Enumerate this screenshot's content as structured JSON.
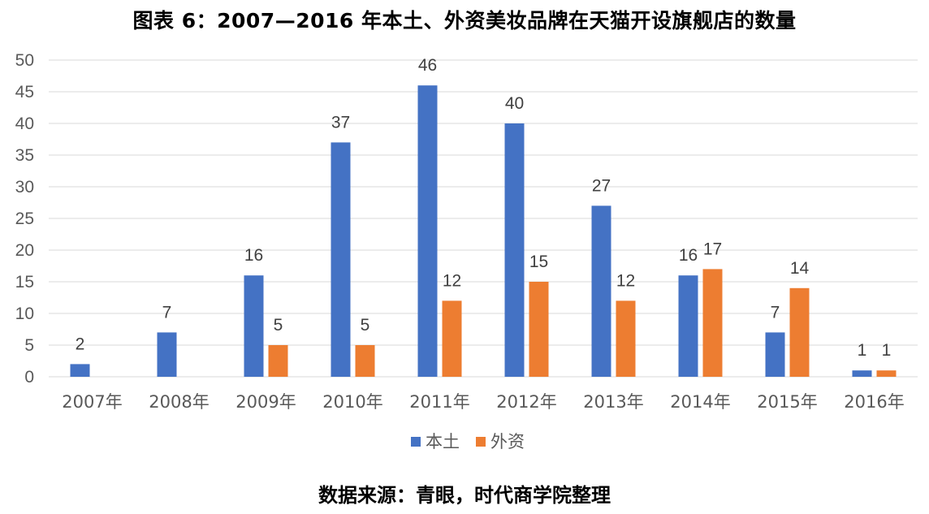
{
  "title": "图表 6：2007—2016 年本土、外资美妆品牌在天猫开设旗舰店的数量",
  "source": "数据来源：青眼，时代商学院整理",
  "chart_data": {
    "type": "bar",
    "categories": [
      "2007年",
      "2008年",
      "2009年",
      "2010年",
      "2011年",
      "2012年",
      "2013年",
      "2014年",
      "2015年",
      "2016年"
    ],
    "series": [
      {
        "name": "本土",
        "color": "#4472C4",
        "values": [
          2,
          7,
          16,
          37,
          46,
          40,
          27,
          16,
          7,
          1
        ],
        "labels": [
          "2",
          "7",
          "16",
          "37",
          "46",
          "40",
          "27",
          "16",
          "7",
          "1"
        ]
      },
      {
        "name": "外资",
        "color": "#ED7D31",
        "values": [
          0,
          0,
          5,
          5,
          12,
          15,
          12,
          17,
          14,
          1
        ],
        "labels": [
          "",
          "",
          "5",
          "5",
          "12",
          "15",
          "12",
          "17",
          "14",
          "1"
        ]
      }
    ],
    "ylim": [
      0,
      50
    ],
    "yticks": [
      "0",
      "5",
      "10",
      "15",
      "20",
      "25",
      "30",
      "35",
      "40",
      "45",
      "50"
    ],
    "ytick_values": [
      0,
      5,
      10,
      15,
      20,
      25,
      30,
      35,
      40,
      45,
      50
    ],
    "grid": true,
    "legend_position": "bottom",
    "gridline_color": "#D9D9D9"
  }
}
